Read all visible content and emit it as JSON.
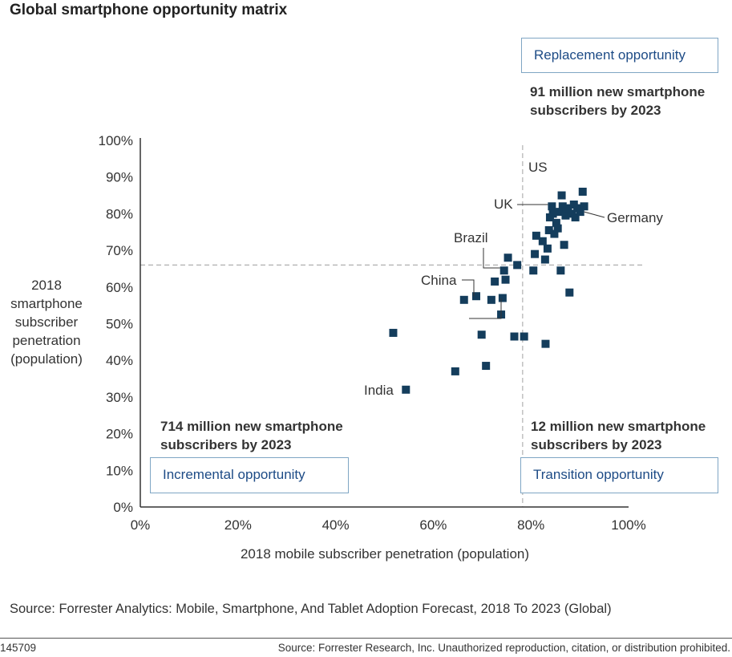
{
  "chart_data": {
    "type": "scatter",
    "title": "Global smartphone opportunity matrix",
    "xlabel": "2018 mobile subscriber penetration (population)",
    "ylabel_lines": [
      "2018",
      "smartphone",
      "subscriber",
      "penetration",
      "(population)"
    ],
    "xlim": [
      0,
      100
    ],
    "ylim": [
      0,
      100
    ],
    "x_ticks": [
      0,
      20,
      40,
      60,
      80,
      100
    ],
    "y_ticks": [
      0,
      10,
      20,
      30,
      40,
      50,
      60,
      70,
      80,
      90,
      100
    ],
    "x_tick_labels": [
      "0%",
      "20%",
      "40%",
      "60%",
      "80%",
      "100%"
    ],
    "y_tick_labels": [
      "0%",
      "10%",
      "20%",
      "30%",
      "40%",
      "50%",
      "60%",
      "70%",
      "80%",
      "90%",
      "100%"
    ],
    "threshold_x": 78.3,
    "threshold_y": 66,
    "point_color": "#143d5c",
    "points": [
      {
        "x": 51.8,
        "y": 47.5
      },
      {
        "x": 54.4,
        "y": 32.0
      },
      {
        "x": 64.5,
        "y": 37.0
      },
      {
        "x": 66.3,
        "y": 56.5
      },
      {
        "x": 68.8,
        "y": 57.5
      },
      {
        "x": 69.9,
        "y": 47.0
      },
      {
        "x": 70.8,
        "y": 38.5
      },
      {
        "x": 71.9,
        "y": 56.5
      },
      {
        "x": 72.6,
        "y": 61.5
      },
      {
        "x": 73.9,
        "y": 52.5
      },
      {
        "x": 74.2,
        "y": 57.0
      },
      {
        "x": 74.5,
        "y": 64.5
      },
      {
        "x": 74.8,
        "y": 62.0
      },
      {
        "x": 75.3,
        "y": 68.0
      },
      {
        "x": 76.6,
        "y": 46.5
      },
      {
        "x": 77.2,
        "y": 66.0
      },
      {
        "x": 78.6,
        "y": 46.5
      },
      {
        "x": 80.5,
        "y": 64.5
      },
      {
        "x": 80.8,
        "y": 69.0
      },
      {
        "x": 81.1,
        "y": 74.0
      },
      {
        "x": 82.4,
        "y": 72.5
      },
      {
        "x": 82.9,
        "y": 67.5
      },
      {
        "x": 83.0,
        "y": 44.5
      },
      {
        "x": 83.4,
        "y": 70.5
      },
      {
        "x": 83.7,
        "y": 75.5
      },
      {
        "x": 83.9,
        "y": 79.0
      },
      {
        "x": 84.3,
        "y": 82.0
      },
      {
        "x": 84.5,
        "y": 80.0
      },
      {
        "x": 84.8,
        "y": 74.5
      },
      {
        "x": 85.2,
        "y": 77.5
      },
      {
        "x": 85.5,
        "y": 76.0
      },
      {
        "x": 85.9,
        "y": 80.5
      },
      {
        "x": 86.1,
        "y": 64.5
      },
      {
        "x": 86.3,
        "y": 85.0
      },
      {
        "x": 86.5,
        "y": 82.0
      },
      {
        "x": 86.8,
        "y": 71.5
      },
      {
        "x": 87.1,
        "y": 79.5
      },
      {
        "x": 87.3,
        "y": 80.5
      },
      {
        "x": 87.6,
        "y": 81.5
      },
      {
        "x": 87.9,
        "y": 58.5
      },
      {
        "x": 88.4,
        "y": 80.0
      },
      {
        "x": 88.8,
        "y": 82.5
      },
      {
        "x": 89.1,
        "y": 79.0
      },
      {
        "x": 89.5,
        "y": 81.5
      },
      {
        "x": 90.1,
        "y": 80.5
      },
      {
        "x": 90.6,
        "y": 86.0
      },
      {
        "x": 90.9,
        "y": 82.0
      }
    ],
    "annotations": [
      {
        "label": "US",
        "x": 86.3,
        "y": 85.0
      },
      {
        "label": "UK",
        "x": 84.3,
        "y": 82.0
      },
      {
        "label": "Germany",
        "x": 90.1,
        "y": 80.5
      },
      {
        "label": "Brazil",
        "x": 74.5,
        "y": 64.5
      },
      {
        "label": "China",
        "x": 68.8,
        "y": 57.5
      },
      {
        "label": "India",
        "x": 54.4,
        "y": 32.0
      }
    ]
  },
  "quadrants": {
    "replacement": {
      "box_label": "Replacement opportunity",
      "text_lines": [
        "91 million new smartphone",
        "subscribers by 2023"
      ]
    },
    "incremental": {
      "box_label": "Incremental opportunity",
      "text_lines": [
        "714 million new smartphone",
        "subscribers by 2023"
      ]
    },
    "transition": {
      "box_label": "Transition opportunity",
      "text_lines": [
        "12 million new smartphone",
        "subscribers by 2023"
      ]
    }
  },
  "source": "Source: Forrester Analytics: Mobile, Smartphone, And Tablet Adoption Forecast, 2018 To 2023 (Global)",
  "footer": {
    "id": "145709",
    "copyright": "Source: Forrester Research, Inc. Unauthorized reproduction, citation, or distribution prohibited."
  }
}
